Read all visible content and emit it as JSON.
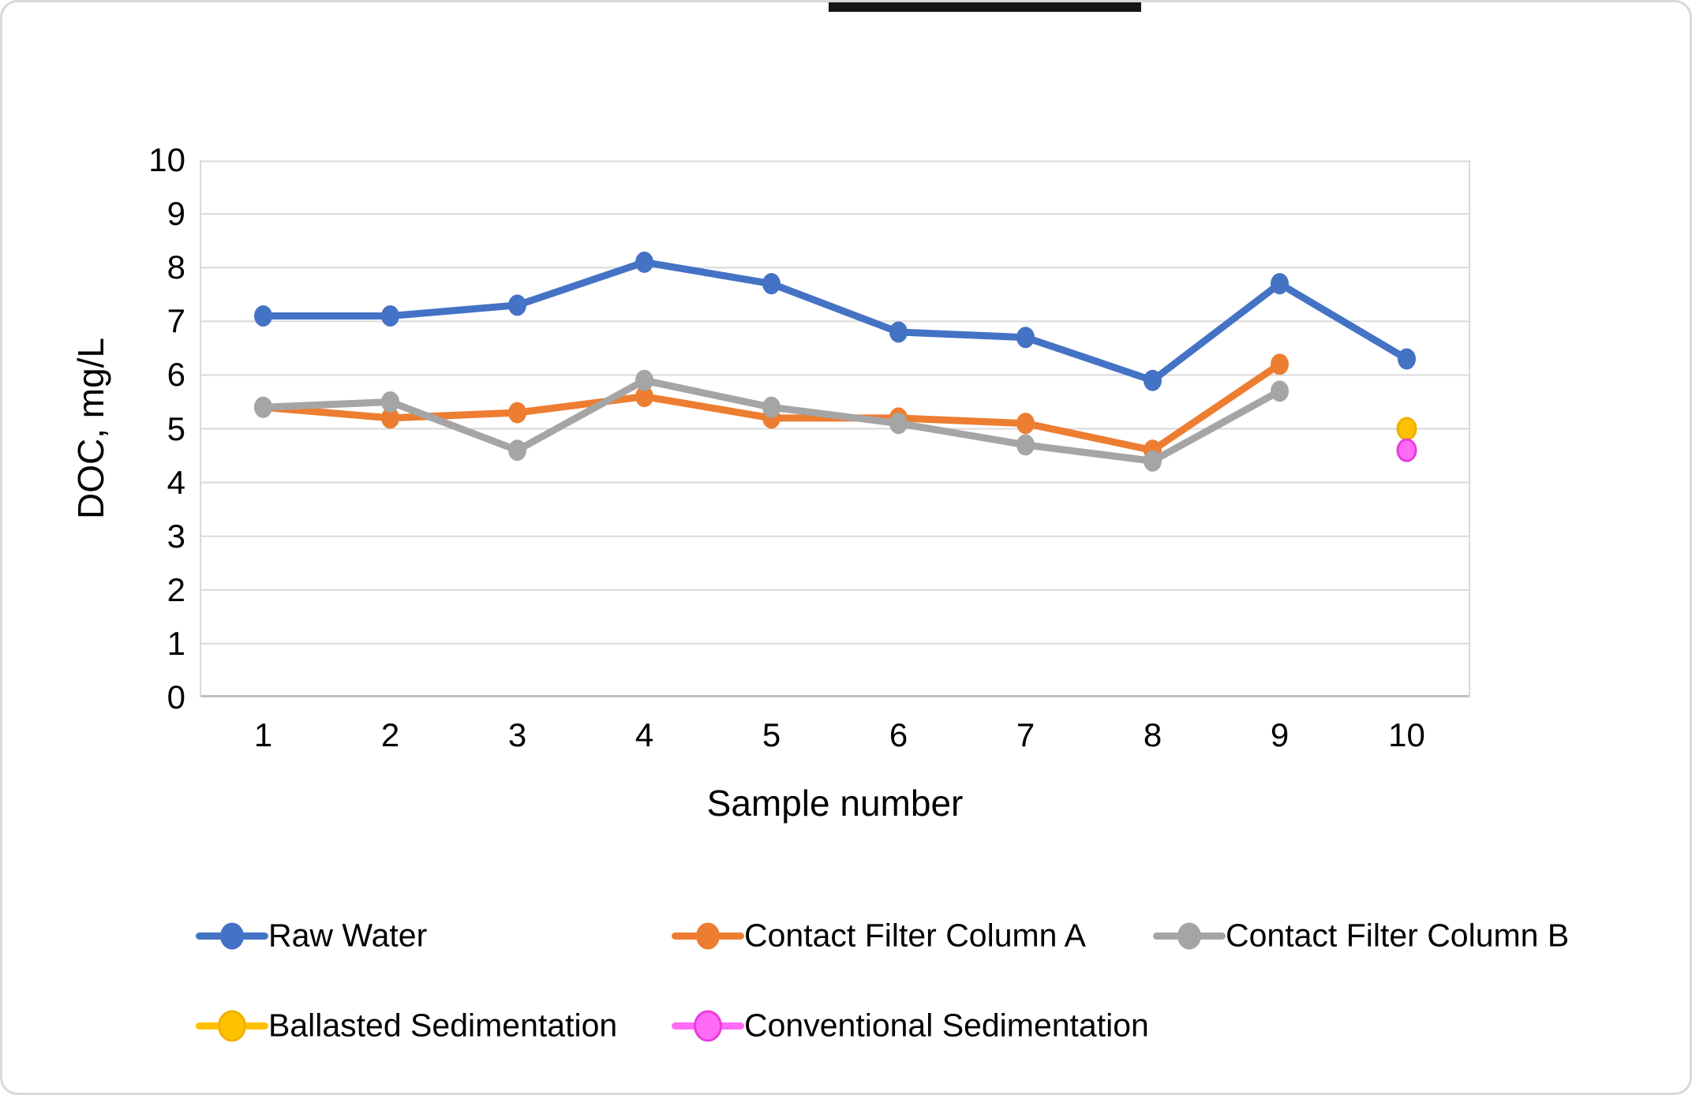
{
  "chart_data": {
    "type": "line",
    "title": "",
    "xlabel": "Sample number",
    "ylabel": "DOC, mg/L",
    "categories": [
      "1",
      "2",
      "3",
      "4",
      "5",
      "6",
      "7",
      "8",
      "9",
      "10"
    ],
    "ylim": [
      0,
      10
    ],
    "ytick_step": 1,
    "grid": true,
    "legend_position": "bottom",
    "series": [
      {
        "name": "Raw Water",
        "color": "#4472C4",
        "values": [
          7.1,
          7.1,
          7.3,
          8.1,
          7.7,
          6.8,
          6.7,
          5.9,
          7.7,
          6.3
        ]
      },
      {
        "name": "Contact Filter Column A",
        "color": "#ED7D31",
        "values": [
          5.4,
          5.2,
          5.3,
          5.6,
          5.2,
          5.2,
          5.1,
          4.6,
          6.2,
          null
        ]
      },
      {
        "name": "Contact Filter Column B",
        "color": "#A5A5A5",
        "values": [
          5.4,
          5.5,
          4.6,
          5.9,
          5.4,
          5.1,
          4.7,
          4.4,
          5.7,
          null
        ]
      },
      {
        "name": "Ballasted Sedimentation",
        "color": "#FFC000",
        "marker_border": "#EFB000",
        "values": [
          null,
          null,
          null,
          null,
          null,
          null,
          null,
          null,
          null,
          5.0
        ]
      },
      {
        "name": "Conventional Sedimentation",
        "color": "#FF6BF7",
        "marker_border": "#E93BDC",
        "values": [
          null,
          null,
          null,
          null,
          null,
          null,
          null,
          null,
          null,
          4.6
        ]
      }
    ]
  }
}
